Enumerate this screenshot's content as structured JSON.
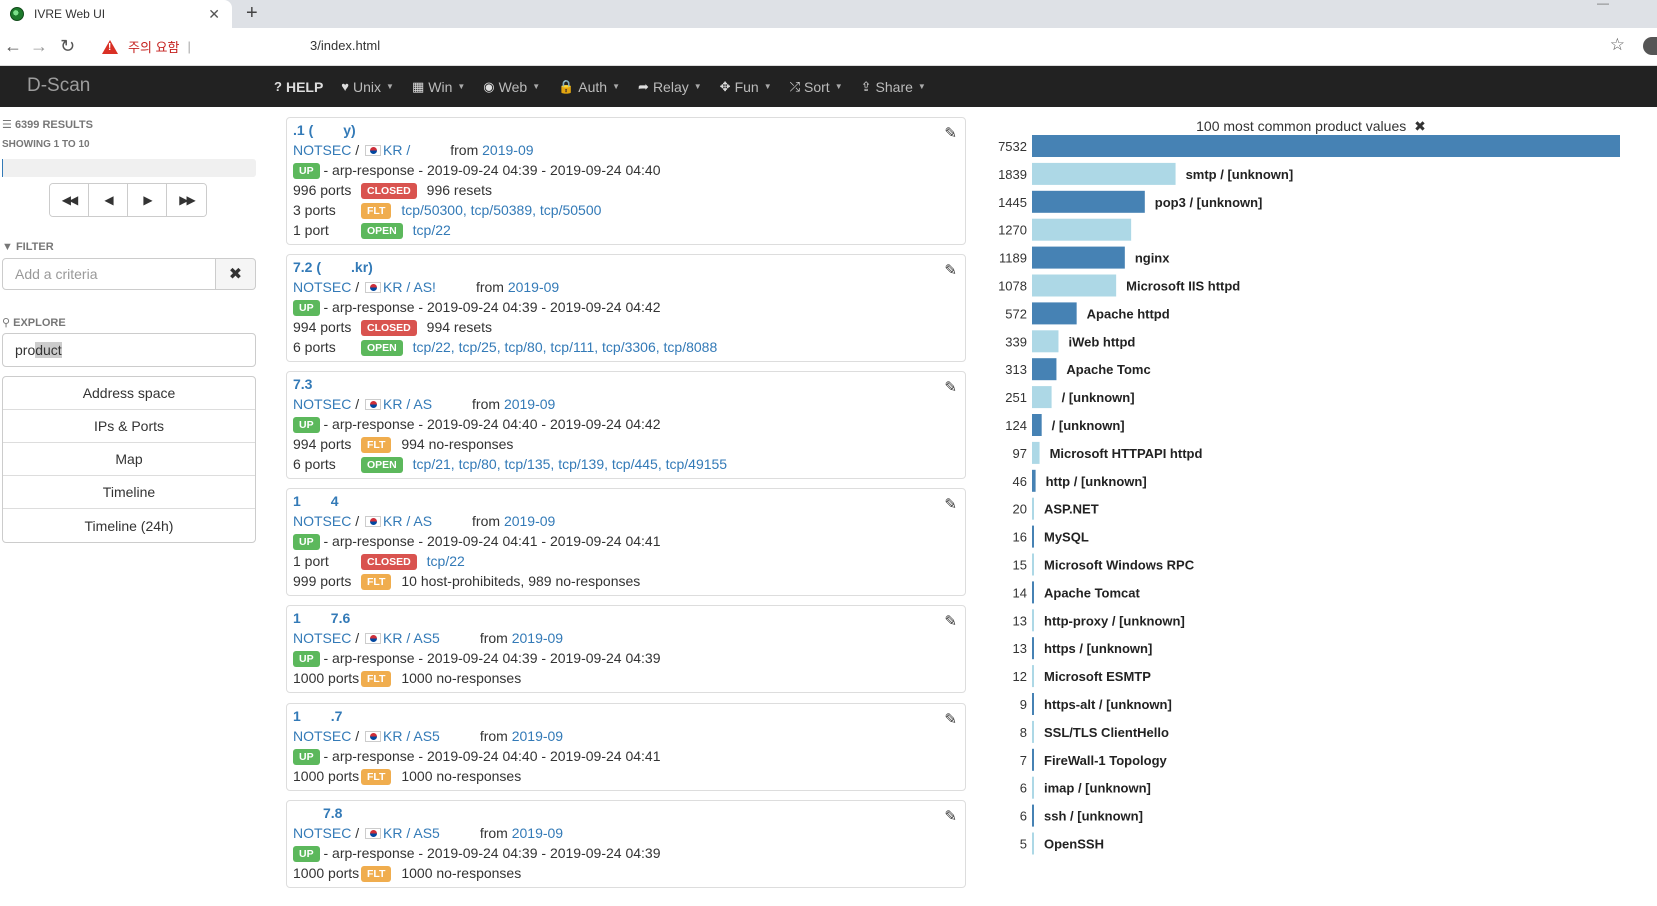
{
  "browser": {
    "tab_title": "IVRE Web UI",
    "warning": "주의 요함",
    "url": "3/index.html"
  },
  "navbar": {
    "brand": "D-Scan",
    "menu": [
      {
        "label": "HELP",
        "icon": "?"
      },
      {
        "label": "Unix",
        "icon": "♥"
      },
      {
        "label": "Win",
        "icon": "▦"
      },
      {
        "label": "Web",
        "icon": "◉"
      },
      {
        "label": "Auth",
        "icon": "🔒"
      },
      {
        "label": "Relay",
        "icon": "➦"
      },
      {
        "label": "Fun",
        "icon": "✥"
      },
      {
        "label": "Sort",
        "icon": "⤮"
      },
      {
        "label": "Share",
        "icon": "⇪"
      }
    ]
  },
  "sidebar": {
    "results": "6399 RESULTS",
    "showing": "SHOWING 1 TO 10",
    "filter_label": "FILTER",
    "filter_placeholder": "Add a criteria",
    "explore_label": "EXPLORE",
    "explore_value_a": "pro",
    "explore_value_b": "duct",
    "explore_items": [
      "Address space",
      "IPs & Ports",
      "Map",
      "Timeline",
      "Timeline (24h)"
    ]
  },
  "results": [
    {
      "host": ".1 (",
      "host2": "y)",
      "source": "NOTSEC",
      "country": "KR",
      "asn": "/",
      "from_text": "from",
      "date": "2019-09",
      "up": "UP",
      "reason": "- arp-response - 2019-09-24 04:39 - 2019-09-24 04:40",
      "ports": [
        {
          "count": "996 ports",
          "badge": "CLOSED",
          "kind": "closed",
          "detail": "996 resets",
          "link": false
        },
        {
          "count": "3 ports",
          "badge": "FLT",
          "kind": "flt",
          "detail": "tcp/50300, tcp/50389, tcp/50500",
          "link": true
        },
        {
          "count": "1 port",
          "badge": "OPEN",
          "kind": "open",
          "detail": "tcp/22",
          "link": true
        }
      ]
    },
    {
      "host": "7.2 (",
      "host2": ".kr)",
      "source": "NOTSEC",
      "country": "KR",
      "asn": "/ AS!",
      "from_text": "from",
      "date": "2019-09",
      "up": "UP",
      "reason": "- arp-response - 2019-09-24 04:39 - 2019-09-24 04:42",
      "ports": [
        {
          "count": "994 ports",
          "badge": "CLOSED",
          "kind": "closed",
          "detail": "994 resets",
          "link": false
        },
        {
          "count": "6 ports",
          "badge": "OPEN",
          "kind": "open",
          "detail": "tcp/22, tcp/25, tcp/80, tcp/111, tcp/3306, tcp/8088",
          "link": true
        }
      ]
    },
    {
      "host": "7.3",
      "host2": "",
      "source": "NOTSEC",
      "country": "KR",
      "asn": "/ AS",
      "from_text": "from",
      "date": "2019-09",
      "up": "UP",
      "reason": "- arp-response - 2019-09-24 04:40 - 2019-09-24 04:42",
      "ports": [
        {
          "count": "994 ports",
          "badge": "FLT",
          "kind": "flt",
          "detail": "994 no-responses",
          "link": false
        },
        {
          "count": "6 ports",
          "badge": "OPEN",
          "kind": "open",
          "detail": "tcp/21, tcp/80, tcp/135, tcp/139, tcp/445, tcp/49155",
          "link": true
        }
      ]
    },
    {
      "host": "1",
      "host2": "4",
      "source": "NOTSEC",
      "country": "KR",
      "asn": "/ AS",
      "from_text": "from",
      "date": "2019-09",
      "up": "UP",
      "reason": "- arp-response - 2019-09-24 04:41 - 2019-09-24 04:41",
      "ports": [
        {
          "count": "1 port",
          "badge": "CLOSED",
          "kind": "closed",
          "detail": "tcp/22",
          "link": true
        },
        {
          "count": "999 ports",
          "badge": "FLT",
          "kind": "flt",
          "detail": "10 host-prohibiteds, 989 no-responses",
          "link": false
        }
      ]
    },
    {
      "host": "1",
      "host2": "7.6",
      "source": "NOTSEC",
      "country": "KR",
      "asn": "/ AS5",
      "from_text": "from",
      "date": "2019-09",
      "up": "UP",
      "reason": "- arp-response - 2019-09-24 04:39 - 2019-09-24 04:39",
      "ports": [
        {
          "count": "1000 ports",
          "badge": "FLT",
          "kind": "flt",
          "detail": "1000 no-responses",
          "link": false
        }
      ]
    },
    {
      "host": "1",
      "host2": ".7",
      "source": "NOTSEC",
      "country": "KR",
      "asn": "/ AS5",
      "from_text": "from",
      "date": "2019-09",
      "up": "UP",
      "reason": "- arp-response - 2019-09-24 04:40 - 2019-09-24 04:41",
      "ports": [
        {
          "count": "1000 ports",
          "badge": "FLT",
          "kind": "flt",
          "detail": "1000 no-responses",
          "link": false
        }
      ]
    },
    {
      "host": "",
      "host2": "7.8",
      "source": "NOTSEC",
      "country": "KR",
      "asn": "/ AS5",
      "from_text": "from",
      "date": "2019-09",
      "up": "UP",
      "reason": "- arp-response - 2019-09-24 04:39 - 2019-09-24 04:39",
      "ports": [
        {
          "count": "1000 ports",
          "badge": "FLT",
          "kind": "flt",
          "detail": "1000 no-responses",
          "link": false
        }
      ]
    }
  ],
  "chart_data": {
    "type": "bar",
    "orientation": "horizontal",
    "title": "100 most common product values",
    "colors": {
      "dark": "#4682b4",
      "light": "#add8e6"
    },
    "categories": [
      "",
      "smtp / [unknown]",
      "pop3 / [unknown]",
      "",
      "nginx",
      "Microsoft IIS httpd",
      "Apache httpd",
      "iWeb httpd",
      "Apache Tomc",
      "/ [unknown]",
      "/ [unknown]",
      "Microsoft HTTPAPI httpd",
      "http / [unknown]",
      "ASP.NET",
      "MySQL",
      "Microsoft Windows RPC",
      "Apache Tomcat",
      "http-proxy / [unknown]",
      "https / [unknown]",
      "Microsoft ESMTP",
      "https-alt / [unknown]",
      "SSL/TLS ClientHello",
      "FireWall-1 Topology",
      "imap / [unknown]",
      "ssh / [unknown]",
      "OpenSSH"
    ],
    "values": [
      7532,
      1839,
      1445,
      1270,
      1189,
      1078,
      572,
      339,
      313,
      251,
      124,
      97,
      46,
      20,
      16,
      15,
      14,
      13,
      13,
      12,
      9,
      8,
      7,
      6,
      6,
      5
    ]
  }
}
